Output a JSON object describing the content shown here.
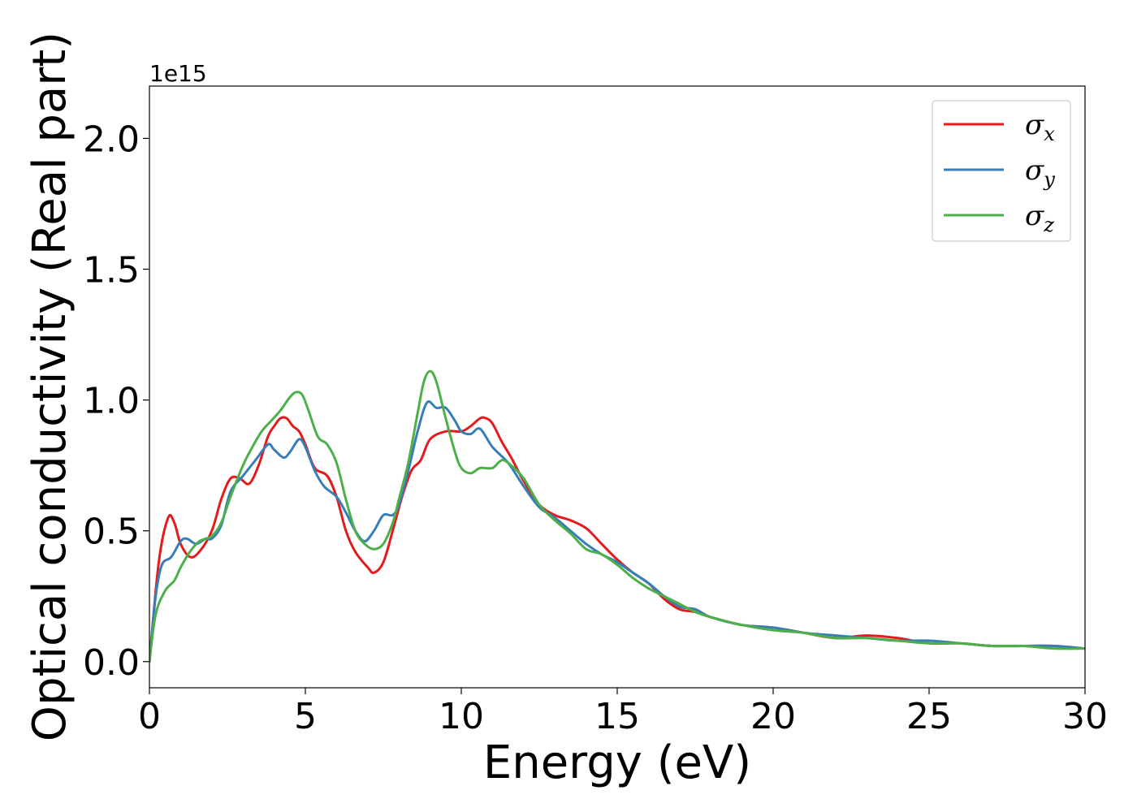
{
  "chart_data": {
    "type": "line",
    "xlabel": "Energy (eV)",
    "ylabel": "Optical conductivity (Real part)",
    "y_offset_label": "1e15",
    "xlim": [
      0,
      30
    ],
    "ylim": [
      -0.1,
      2.2
    ],
    "xticks": [
      0,
      5,
      10,
      15,
      20,
      25,
      30
    ],
    "yticks": [
      0.0,
      0.5,
      1.0,
      1.5,
      2.0
    ],
    "ytick_labels": [
      "0.0",
      "0.5",
      "1.0",
      "1.5",
      "2.0"
    ],
    "grid": false,
    "legend_position": "top-right",
    "series": [
      {
        "name": "σx",
        "symbol": "σ",
        "subscript": "x",
        "color": "#e41a1c",
        "x": [
          0,
          0.3,
          0.6,
          0.8,
          1.0,
          1.3,
          1.6,
          2.0,
          2.3,
          2.6,
          2.9,
          3.2,
          3.5,
          3.8,
          4.0,
          4.2,
          4.4,
          4.6,
          4.8,
          5.0,
          5.3,
          5.7,
          6.0,
          6.3,
          6.6,
          7.0,
          7.2,
          7.5,
          7.8,
          8.1,
          8.4,
          8.7,
          9.0,
          9.5,
          10.0,
          10.3,
          10.6,
          10.8,
          11.0,
          11.3,
          11.6,
          12.0,
          12.5,
          13.0,
          13.5,
          14.0,
          14.5,
          15.0,
          15.5,
          16.0,
          16.5,
          17.0,
          17.5,
          18.0,
          19.0,
          20.0,
          21.0,
          22.0,
          23.0,
          24.0,
          25.0,
          26.0,
          27.0,
          28.0,
          29.0,
          30.0
        ],
        "y": [
          0,
          0.38,
          0.55,
          0.53,
          0.45,
          0.4,
          0.42,
          0.5,
          0.62,
          0.7,
          0.7,
          0.68,
          0.75,
          0.86,
          0.9,
          0.93,
          0.93,
          0.9,
          0.88,
          0.83,
          0.74,
          0.71,
          0.63,
          0.5,
          0.42,
          0.36,
          0.34,
          0.38,
          0.5,
          0.63,
          0.73,
          0.77,
          0.85,
          0.88,
          0.88,
          0.9,
          0.93,
          0.93,
          0.91,
          0.84,
          0.78,
          0.69,
          0.6,
          0.56,
          0.54,
          0.51,
          0.45,
          0.39,
          0.34,
          0.3,
          0.24,
          0.2,
          0.19,
          0.17,
          0.14,
          0.13,
          0.11,
          0.09,
          0.1,
          0.09,
          0.07,
          0.07,
          0.06,
          0.06,
          0.06,
          0.05
        ]
      },
      {
        "name": "σy",
        "symbol": "σ",
        "subscript": "y",
        "color": "#377eb8",
        "x": [
          0,
          0.2,
          0.4,
          0.7,
          1.0,
          1.2,
          1.5,
          1.8,
          2.0,
          2.3,
          2.6,
          3.0,
          3.4,
          3.8,
          4.0,
          4.3,
          4.5,
          4.8,
          5.0,
          5.3,
          5.6,
          6.0,
          6.3,
          6.6,
          6.9,
          7.2,
          7.5,
          7.8,
          8.0,
          8.3,
          8.6,
          8.9,
          9.2,
          9.5,
          9.8,
          10.0,
          10.3,
          10.6,
          11.0,
          11.5,
          12.0,
          12.5,
          13.0,
          13.5,
          14.0,
          14.5,
          15.0,
          15.5,
          16.0,
          16.5,
          17.0,
          17.5,
          18.0,
          19.0,
          20.0,
          21.0,
          22.0,
          23.0,
          24.0,
          25.0,
          26.0,
          27.0,
          28.0,
          29.0,
          30.0
        ],
        "y": [
          0,
          0.25,
          0.37,
          0.4,
          0.46,
          0.47,
          0.45,
          0.47,
          0.47,
          0.52,
          0.65,
          0.71,
          0.77,
          0.83,
          0.81,
          0.78,
          0.8,
          0.85,
          0.82,
          0.73,
          0.67,
          0.63,
          0.57,
          0.5,
          0.46,
          0.5,
          0.56,
          0.56,
          0.6,
          0.73,
          0.88,
          0.99,
          0.97,
          0.97,
          0.92,
          0.88,
          0.87,
          0.89,
          0.82,
          0.76,
          0.67,
          0.59,
          0.55,
          0.5,
          0.45,
          0.41,
          0.38,
          0.34,
          0.3,
          0.25,
          0.21,
          0.2,
          0.17,
          0.14,
          0.13,
          0.11,
          0.1,
          0.09,
          0.08,
          0.08,
          0.07,
          0.06,
          0.06,
          0.06,
          0.05
        ]
      },
      {
        "name": "σz",
        "symbol": "σ",
        "subscript": "z",
        "color": "#4daf4a",
        "x": [
          0,
          0.2,
          0.5,
          0.8,
          1.0,
          1.3,
          1.6,
          2.0,
          2.3,
          2.6,
          3.0,
          3.3,
          3.6,
          3.9,
          4.2,
          4.5,
          4.7,
          4.9,
          5.1,
          5.4,
          5.7,
          6.0,
          6.3,
          6.6,
          6.9,
          7.2,
          7.5,
          7.8,
          8.0,
          8.3,
          8.6,
          8.8,
          9.0,
          9.2,
          9.5,
          9.8,
          10.0,
          10.3,
          10.6,
          11.0,
          11.3,
          11.6,
          12.0,
          12.5,
          13.0,
          13.5,
          14.0,
          14.5,
          15.0,
          15.5,
          16.0,
          16.5,
          17.0,
          17.5,
          18.0,
          19.0,
          20.0,
          21.0,
          22.0,
          23.0,
          24.0,
          25.0,
          26.0,
          27.0,
          28.0,
          29.0,
          30.0
        ],
        "y": [
          0,
          0.18,
          0.27,
          0.31,
          0.36,
          0.42,
          0.46,
          0.48,
          0.53,
          0.63,
          0.75,
          0.82,
          0.88,
          0.92,
          0.96,
          1.01,
          1.03,
          1.02,
          0.96,
          0.86,
          0.83,
          0.76,
          0.62,
          0.5,
          0.45,
          0.43,
          0.45,
          0.53,
          0.62,
          0.76,
          0.95,
          1.07,
          1.11,
          1.07,
          0.93,
          0.8,
          0.74,
          0.72,
          0.74,
          0.74,
          0.77,
          0.75,
          0.7,
          0.6,
          0.54,
          0.49,
          0.43,
          0.41,
          0.37,
          0.32,
          0.28,
          0.25,
          0.22,
          0.19,
          0.17,
          0.14,
          0.12,
          0.11,
          0.09,
          0.09,
          0.08,
          0.07,
          0.07,
          0.06,
          0.06,
          0.05,
          0.05
        ]
      }
    ]
  }
}
